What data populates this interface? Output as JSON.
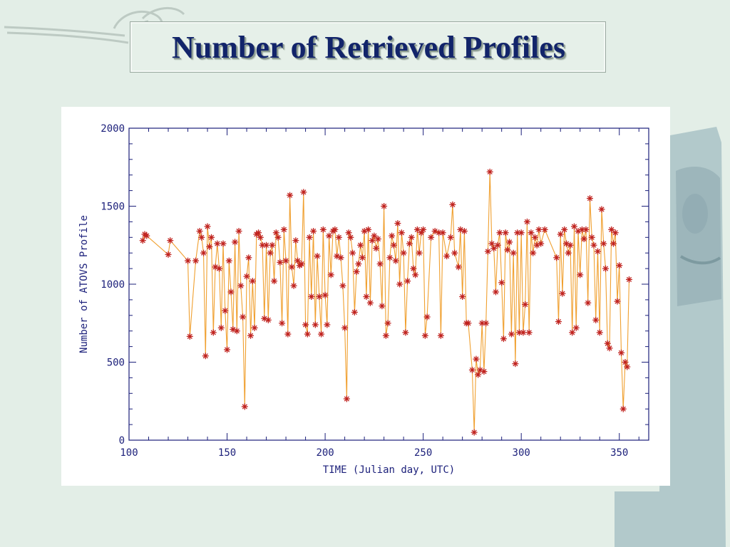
{
  "slide": {
    "title": "Number of Retrieved Profiles",
    "colors": {
      "background": "#e3eee7",
      "title": "#12246a",
      "axes": "#1b1f7a",
      "line": "#f0a030",
      "marker": "#c0221e"
    }
  },
  "chart_data": {
    "type": "scatter",
    "title": "",
    "xlabel": "TIME (Julian day, UTC)",
    "ylabel": "Number of ATOVS Profile",
    "xlim": [
      100,
      365
    ],
    "ylim": [
      0,
      2000
    ],
    "xticks": [
      100,
      150,
      200,
      250,
      300,
      350
    ],
    "yticks": [
      0,
      500,
      1000,
      1500,
      2000
    ],
    "grid": false,
    "connected": true,
    "series": [
      {
        "points": [
          [
            107,
            1280
          ],
          [
            108,
            1320
          ],
          [
            109,
            1310
          ],
          [
            120,
            1190
          ],
          [
            121,
            1280
          ],
          [
            130,
            1150
          ],
          [
            131,
            665
          ],
          [
            134,
            1150
          ],
          [
            136,
            1340
          ],
          [
            137,
            1300
          ],
          [
            138,
            1200
          ],
          [
            139,
            540
          ],
          [
            140,
            1370
          ],
          [
            141,
            1240
          ],
          [
            142,
            1300
          ],
          [
            143,
            690
          ],
          [
            144,
            1110
          ],
          [
            145,
            1260
          ],
          [
            146,
            1100
          ],
          [
            147,
            720
          ],
          [
            148,
            1260
          ],
          [
            149,
            830
          ],
          [
            150,
            580
          ],
          [
            151,
            1150
          ],
          [
            152,
            950
          ],
          [
            153,
            710
          ],
          [
            154,
            1270
          ],
          [
            155,
            700
          ],
          [
            156,
            1340
          ],
          [
            157,
            990
          ],
          [
            158,
            790
          ],
          [
            159,
            215
          ],
          [
            160,
            1050
          ],
          [
            161,
            1170
          ],
          [
            162,
            670
          ],
          [
            163,
            1020
          ],
          [
            164,
            720
          ],
          [
            165,
            1320
          ],
          [
            166,
            1330
          ],
          [
            167,
            1300
          ],
          [
            168,
            1250
          ],
          [
            169,
            780
          ],
          [
            170,
            1250
          ],
          [
            171,
            770
          ],
          [
            172,
            1200
          ],
          [
            173,
            1250
          ],
          [
            174,
            1020
          ],
          [
            175,
            1330
          ],
          [
            176,
            1300
          ],
          [
            177,
            1140
          ],
          [
            178,
            750
          ],
          [
            179,
            1350
          ],
          [
            180,
            1150
          ],
          [
            181,
            680
          ],
          [
            182,
            1570
          ],
          [
            183,
            1110
          ],
          [
            184,
            990
          ],
          [
            185,
            1280
          ],
          [
            186,
            1150
          ],
          [
            187,
            1120
          ],
          [
            188,
            1130
          ],
          [
            189,
            1590
          ],
          [
            190,
            740
          ],
          [
            191,
            680
          ],
          [
            192,
            1300
          ],
          [
            193,
            920
          ],
          [
            194,
            1340
          ],
          [
            195,
            740
          ],
          [
            196,
            1180
          ],
          [
            197,
            920
          ],
          [
            198,
            680
          ],
          [
            199,
            1350
          ],
          [
            200,
            930
          ],
          [
            201,
            740
          ],
          [
            202,
            1310
          ],
          [
            203,
            1060
          ],
          [
            204,
            1340
          ],
          [
            205,
            1350
          ],
          [
            206,
            1180
          ],
          [
            207,
            1300
          ],
          [
            208,
            1170
          ],
          [
            209,
            990
          ],
          [
            210,
            720
          ],
          [
            211,
            265
          ],
          [
            212,
            1330
          ],
          [
            213,
            1300
          ],
          [
            214,
            1200
          ],
          [
            215,
            820
          ],
          [
            216,
            1080
          ],
          [
            217,
            1130
          ],
          [
            218,
            1250
          ],
          [
            219,
            1170
          ],
          [
            220,
            1340
          ],
          [
            221,
            920
          ],
          [
            222,
            1350
          ],
          [
            223,
            880
          ],
          [
            224,
            1280
          ],
          [
            225,
            1310
          ],
          [
            226,
            1230
          ],
          [
            227,
            1290
          ],
          [
            228,
            1130
          ],
          [
            229,
            860
          ],
          [
            230,
            1500
          ],
          [
            231,
            670
          ],
          [
            232,
            750
          ],
          [
            233,
            1170
          ],
          [
            234,
            1310
          ],
          [
            235,
            1250
          ],
          [
            236,
            1150
          ],
          [
            237,
            1390
          ],
          [
            238,
            1000
          ],
          [
            239,
            1330
          ],
          [
            240,
            1200
          ],
          [
            241,
            690
          ],
          [
            242,
            1020
          ],
          [
            243,
            1260
          ],
          [
            244,
            1300
          ],
          [
            245,
            1100
          ],
          [
            246,
            1060
          ],
          [
            247,
            1350
          ],
          [
            248,
            1200
          ],
          [
            249,
            1330
          ],
          [
            250,
            1350
          ],
          [
            251,
            670
          ],
          [
            252,
            790
          ],
          [
            254,
            1300
          ],
          [
            256,
            1340
          ],
          [
            258,
            1330
          ],
          [
            259,
            670
          ],
          [
            260,
            1330
          ],
          [
            262,
            1180
          ],
          [
            264,
            1300
          ],
          [
            265,
            1510
          ],
          [
            266,
            1200
          ],
          [
            268,
            1110
          ],
          [
            269,
            1350
          ],
          [
            270,
            920
          ],
          [
            271,
            1340
          ],
          [
            272,
            750
          ],
          [
            273,
            750
          ],
          [
            275,
            450
          ],
          [
            276,
            50
          ],
          [
            277,
            520
          ],
          [
            278,
            420
          ],
          [
            279,
            450
          ],
          [
            280,
            750
          ],
          [
            281,
            440
          ],
          [
            282,
            750
          ],
          [
            283,
            1210
          ],
          [
            284,
            1720
          ],
          [
            285,
            1260
          ],
          [
            286,
            1230
          ],
          [
            287,
            950
          ],
          [
            288,
            1250
          ],
          [
            289,
            1330
          ],
          [
            290,
            1010
          ],
          [
            291,
            650
          ],
          [
            292,
            1330
          ],
          [
            293,
            1220
          ],
          [
            294,
            1270
          ],
          [
            295,
            680
          ],
          [
            296,
            1200
          ],
          [
            297,
            490
          ],
          [
            298,
            1330
          ],
          [
            299,
            690
          ],
          [
            300,
            1330
          ],
          [
            301,
            690
          ],
          [
            302,
            870
          ],
          [
            303,
            1400
          ],
          [
            304,
            690
          ],
          [
            305,
            1330
          ],
          [
            306,
            1200
          ],
          [
            307,
            1300
          ],
          [
            308,
            1250
          ],
          [
            309,
            1350
          ],
          [
            310,
            1260
          ],
          [
            312,
            1350
          ],
          [
            318,
            1170
          ],
          [
            319,
            760
          ],
          [
            320,
            1320
          ],
          [
            321,
            940
          ],
          [
            322,
            1350
          ],
          [
            323,
            1260
          ],
          [
            324,
            1200
          ],
          [
            325,
            1250
          ],
          [
            326,
            690
          ],
          [
            327,
            1370
          ],
          [
            328,
            720
          ],
          [
            329,
            1340
          ],
          [
            330,
            1060
          ],
          [
            331,
            1350
          ],
          [
            332,
            1290
          ],
          [
            333,
            1350
          ],
          [
            334,
            880
          ],
          [
            335,
            1550
          ],
          [
            336,
            1300
          ],
          [
            337,
            1250
          ],
          [
            338,
            770
          ],
          [
            339,
            1210
          ],
          [
            340,
            690
          ],
          [
            341,
            1480
          ],
          [
            342,
            1260
          ],
          [
            343,
            1100
          ],
          [
            344,
            620
          ],
          [
            345,
            590
          ],
          [
            346,
            1350
          ],
          [
            347,
            1260
          ],
          [
            348,
            1330
          ],
          [
            349,
            890
          ],
          [
            350,
            1120
          ],
          [
            351,
            560
          ],
          [
            352,
            200
          ],
          [
            353,
            500
          ],
          [
            354,
            470
          ],
          [
            355,
            1030
          ]
        ]
      }
    ]
  }
}
